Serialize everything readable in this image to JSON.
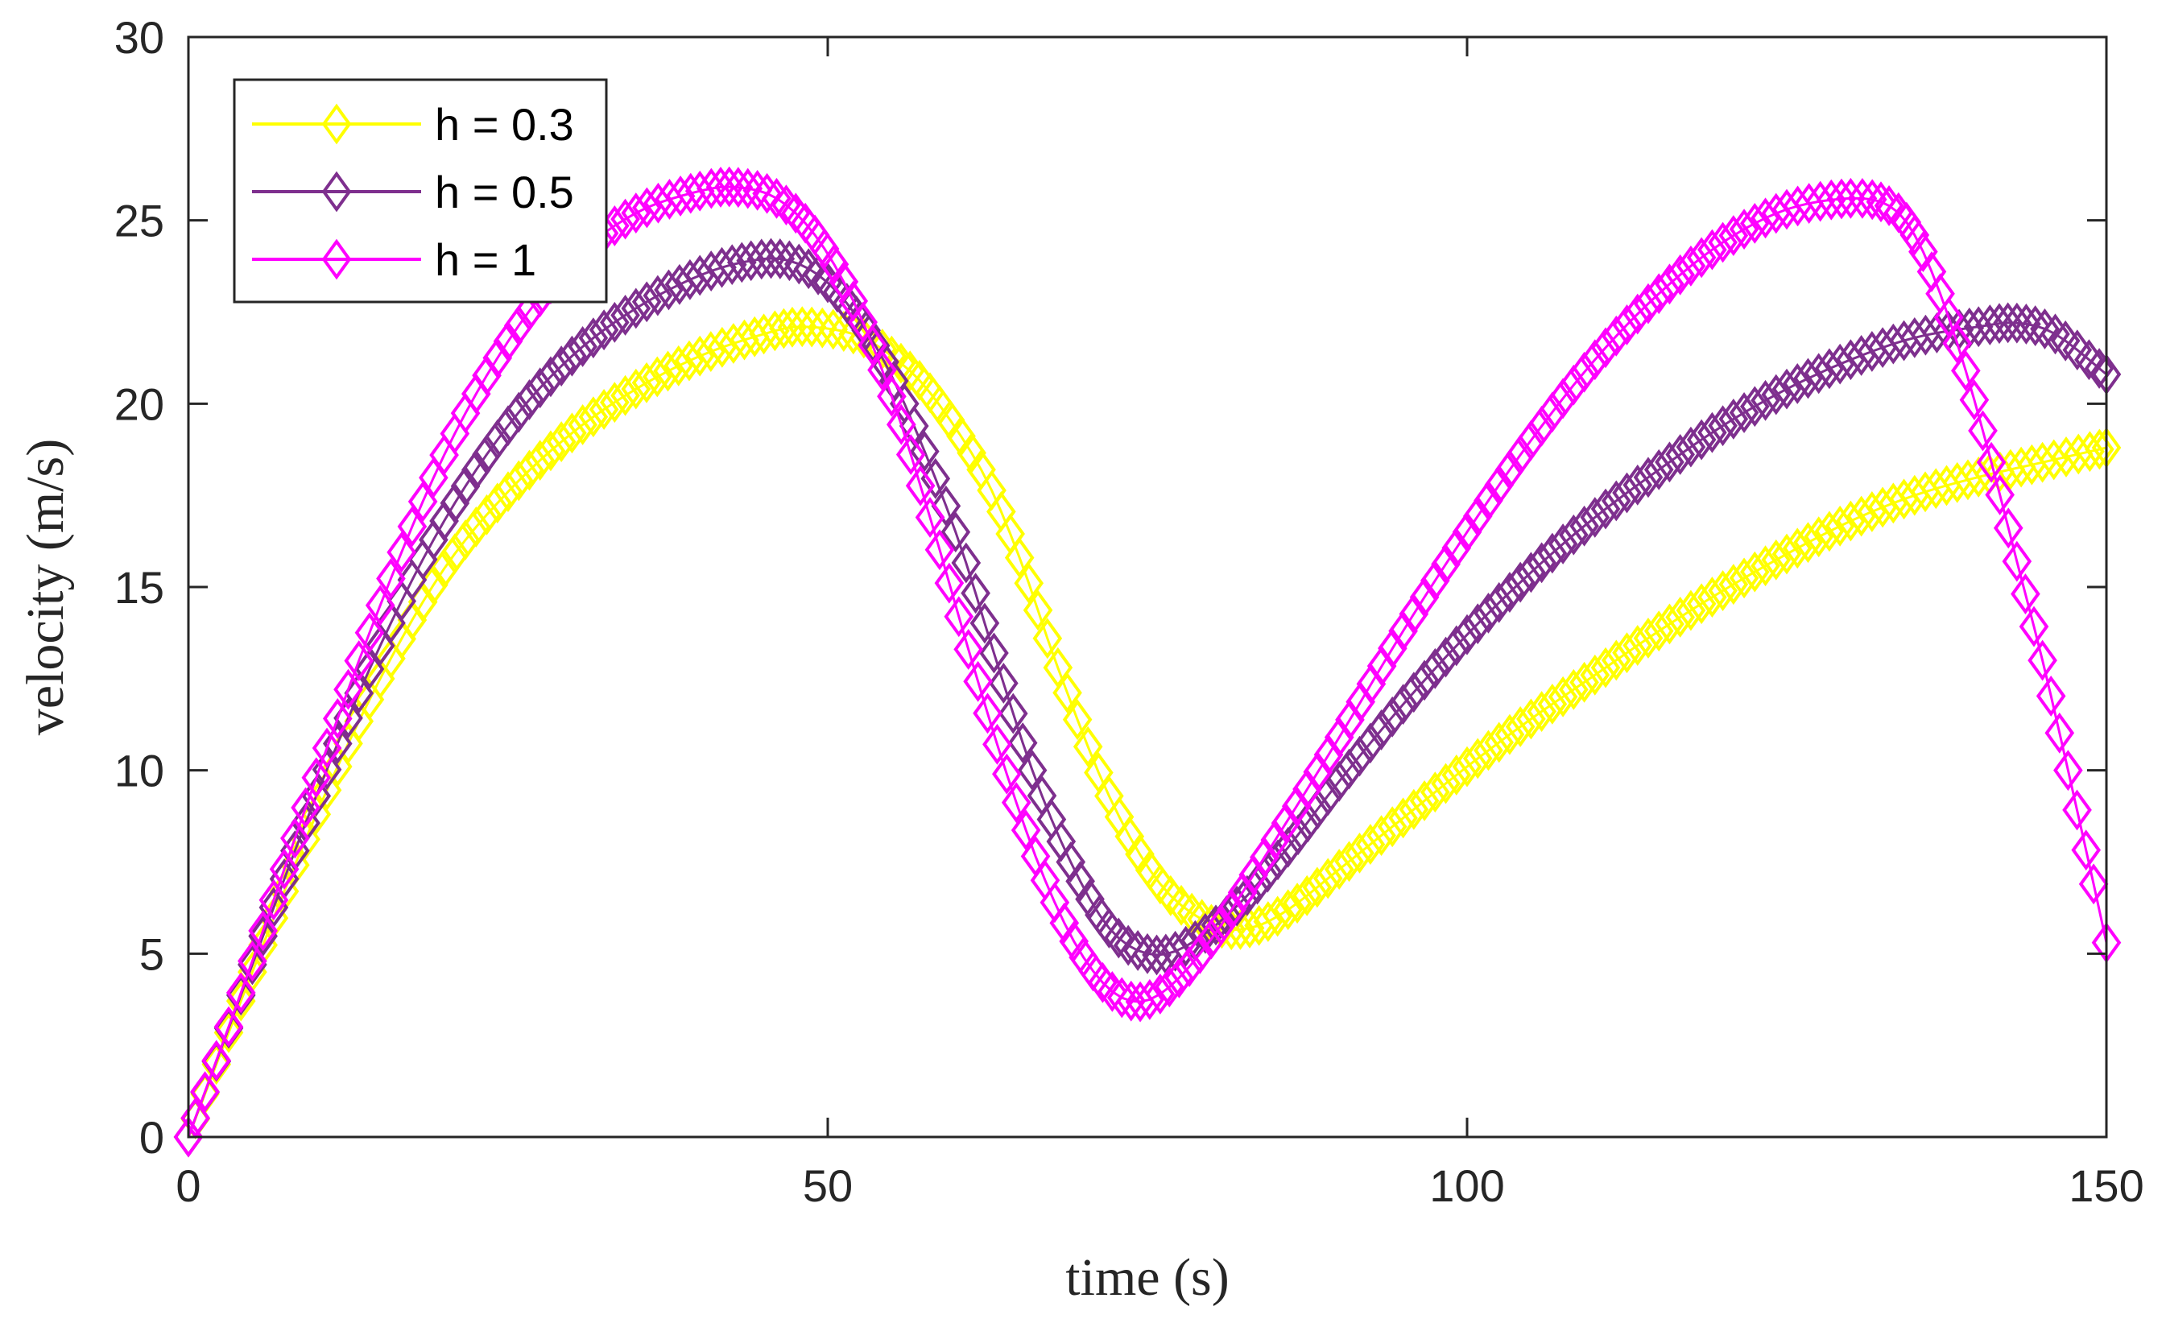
{
  "chart_data": {
    "type": "line",
    "title": "",
    "xlabel": "time (s)",
    "ylabel": "velocity (m/s)",
    "xlim": [
      0,
      150
    ],
    "ylim": [
      0,
      30
    ],
    "xticks": [
      0,
      50,
      100,
      150
    ],
    "yticks": [
      0,
      5,
      10,
      15,
      20,
      25,
      30
    ],
    "grid": false,
    "legend_position": "top-left",
    "marker": "diamond",
    "series": [
      {
        "name": "h = 0.3",
        "color": "#ffff00",
        "x": [
          0,
          5,
          10,
          15,
          20,
          25,
          30,
          35,
          40,
          45,
          48,
          52,
          55,
          58,
          62,
          65,
          68,
          72,
          76,
          80,
          83,
          86,
          90,
          95,
          100,
          105,
          110,
          115,
          120,
          125,
          130,
          135,
          140,
          145,
          150
        ],
        "y": [
          0,
          4.5,
          8.8,
          12.5,
          15.5,
          17.6,
          19.2,
          20.4,
          21.3,
          21.9,
          22.1,
          21.9,
          21.3,
          20.3,
          18.2,
          15.8,
          12.8,
          9.3,
          6.9,
          5.8,
          5.7,
          6.2,
          7.3,
          8.7,
          10.1,
          11.4,
          12.6,
          13.8,
          14.9,
          15.9,
          16.8,
          17.5,
          18.0,
          18.4,
          18.8
        ]
      },
      {
        "name": "h = 0.5",
        "color": "#7e2f8e",
        "x": [
          0,
          5,
          10,
          15,
          20,
          25,
          30,
          35,
          40,
          44,
          47,
          50,
          53,
          56,
          60,
          63,
          66,
          69,
          72,
          75,
          78,
          82,
          86,
          90,
          95,
          100,
          105,
          110,
          115,
          120,
          125,
          130,
          135,
          140,
          143,
          146,
          150
        ],
        "y": [
          0,
          4.7,
          9.3,
          13.4,
          16.8,
          19.4,
          21.3,
          22.6,
          23.5,
          23.9,
          23.9,
          23.3,
          22.0,
          20.0,
          16.5,
          13.2,
          10.0,
          7.5,
          5.7,
          5.0,
          5.2,
          6.3,
          7.9,
          9.7,
          11.8,
          13.7,
          15.4,
          16.9,
          18.2,
          19.4,
          20.4,
          21.2,
          21.8,
          22.1,
          22.2,
          21.9,
          20.8
        ]
      },
      {
        "name": "h = 1",
        "color": "#ff00ff",
        "x": [
          0,
          5,
          10,
          15,
          20,
          25,
          30,
          35,
          40,
          43,
          46,
          49,
          52,
          55,
          58,
          61,
          64,
          67,
          70,
          73,
          76,
          80,
          85,
          90,
          95,
          100,
          105,
          110,
          115,
          120,
          125,
          130,
          133,
          135,
          137,
          139,
          141,
          143,
          145,
          147,
          149,
          150
        ],
        "y": [
          0,
          4.8,
          9.8,
          14.5,
          18.6,
          21.7,
          23.9,
          25.2,
          25.8,
          25.9,
          25.6,
          24.6,
          22.8,
          20.2,
          16.9,
          13.3,
          9.9,
          7.0,
          4.9,
          3.8,
          3.9,
          5.4,
          8.1,
          10.9,
          13.8,
          16.5,
          19.0,
          21.2,
          23.0,
          24.4,
          25.3,
          25.6,
          25.4,
          24.6,
          23.0,
          20.9,
          18.4,
          15.7,
          13.0,
          10.0,
          6.9,
          5.3
        ]
      }
    ]
  }
}
